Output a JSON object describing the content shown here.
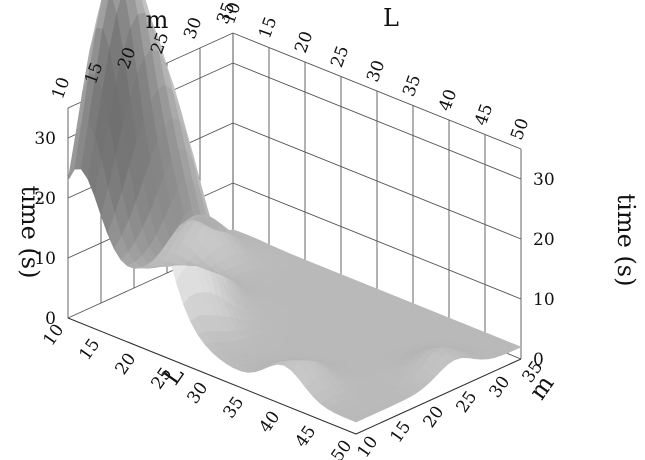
{
  "chart_data": {
    "type": "surface",
    "title": "",
    "axes": {
      "L": {
        "label": "L",
        "ticks": [
          "10",
          "15",
          "20",
          "25",
          "30",
          "35",
          "40",
          "45",
          "50"
        ],
        "range": [
          10,
          50
        ]
      },
      "m": {
        "label": "m",
        "ticks": [
          "10",
          "15",
          "20",
          "25",
          "30",
          "35"
        ],
        "range": [
          10,
          35
        ]
      },
      "time": {
        "label": "time (s)",
        "ticks": [
          "0",
          "10",
          "20",
          "30"
        ],
        "range": [
          0,
          38
        ]
      }
    },
    "grid": true,
    "colormap": "grayscale",
    "surface": {
      "baseline_s": 2,
      "peaks": [
        {
          "L": 17,
          "m": 12,
          "time_s": 36
        },
        {
          "L": 14,
          "m": 11,
          "time_s": 29
        },
        {
          "L": 19,
          "m": 18,
          "time_s": 17
        },
        {
          "L": 22,
          "m": 14,
          "time_s": 14
        },
        {
          "L": 12,
          "m": 28,
          "time_s": 9
        },
        {
          "L": 40,
          "m": 12,
          "time_s": 8
        },
        {
          "L": 48,
          "m": 25,
          "time_s": 6
        }
      ]
    }
  }
}
